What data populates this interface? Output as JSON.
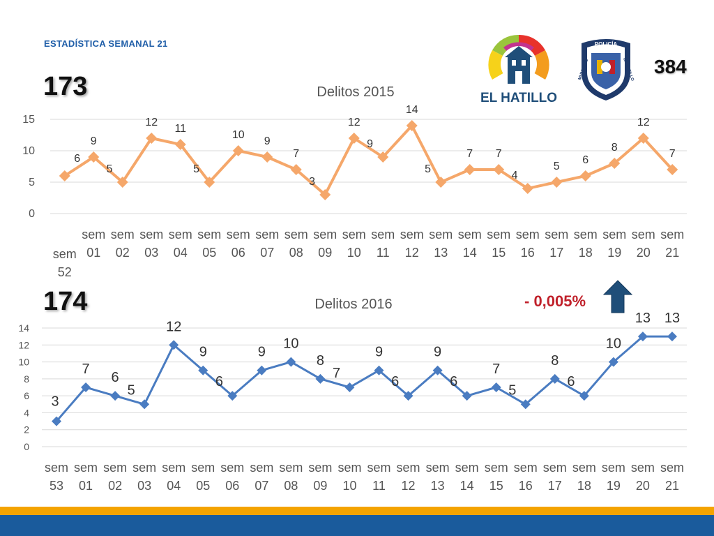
{
  "header": {
    "title": "ESTADÍSTICA SEMANAL 21"
  },
  "totals": {
    "t2015": "173",
    "t2016": "174",
    "police": "384"
  },
  "change": {
    "label": "- 0,005%"
  },
  "logos": {
    "hatillo_text": "EL HATILLO",
    "police_top": "POLICÍA",
    "police_left": "MUNICIPIO",
    "police_right": "EL HATILLO"
  },
  "colors": {
    "series2015": "#f5a76a",
    "series2016": "#4a7cc1",
    "arrow": "#1f4e79",
    "pct": "#c0202a"
  },
  "chart_data": [
    {
      "type": "line",
      "title": "Delitos 2015",
      "categories": [
        "sem 52",
        "sem 01",
        "sem 02",
        "sem 03",
        "sem 04",
        "sem 05",
        "sem 06",
        "sem 07",
        "sem 08",
        "sem 09",
        "sem 10",
        "sem 11",
        "sem 12",
        "sem 13",
        "sem 14",
        "sem 15",
        "sem 16",
        "sem 17",
        "sem 18",
        "sem 19",
        "sem 20",
        "sem 21"
      ],
      "values": [
        6,
        9,
        5,
        12,
        11,
        5,
        10,
        9,
        7,
        3,
        12,
        9,
        14,
        5,
        7,
        7,
        4,
        5,
        6,
        8,
        12,
        7
      ],
      "ylim": [
        0,
        15
      ],
      "yticks": [
        0,
        5,
        10,
        15
      ],
      "grid": true,
      "marker": "diamond"
    },
    {
      "type": "line",
      "title": "Delitos 2016",
      "categories": [
        "sem 53",
        "sem 01",
        "sem 02",
        "sem 03",
        "sem 04",
        "sem 05",
        "sem 06",
        "sem 07",
        "sem 08",
        "sem 09",
        "sem 10",
        "sem 11",
        "sem 12",
        "sem 13",
        "sem 14",
        "sem 15",
        "sem 16",
        "sem 17",
        "sem 18",
        "sem 19",
        "sem 20",
        "sem 21"
      ],
      "values": [
        3,
        7,
        6,
        5,
        12,
        9,
        6,
        9,
        10,
        8,
        7,
        9,
        6,
        9,
        6,
        7,
        5,
        8,
        6,
        10,
        13,
        13
      ],
      "ylim": [
        0,
        14
      ],
      "yticks": [
        0,
        2,
        4,
        6,
        8,
        10,
        12,
        14
      ],
      "grid": true,
      "marker": "diamond"
    }
  ]
}
